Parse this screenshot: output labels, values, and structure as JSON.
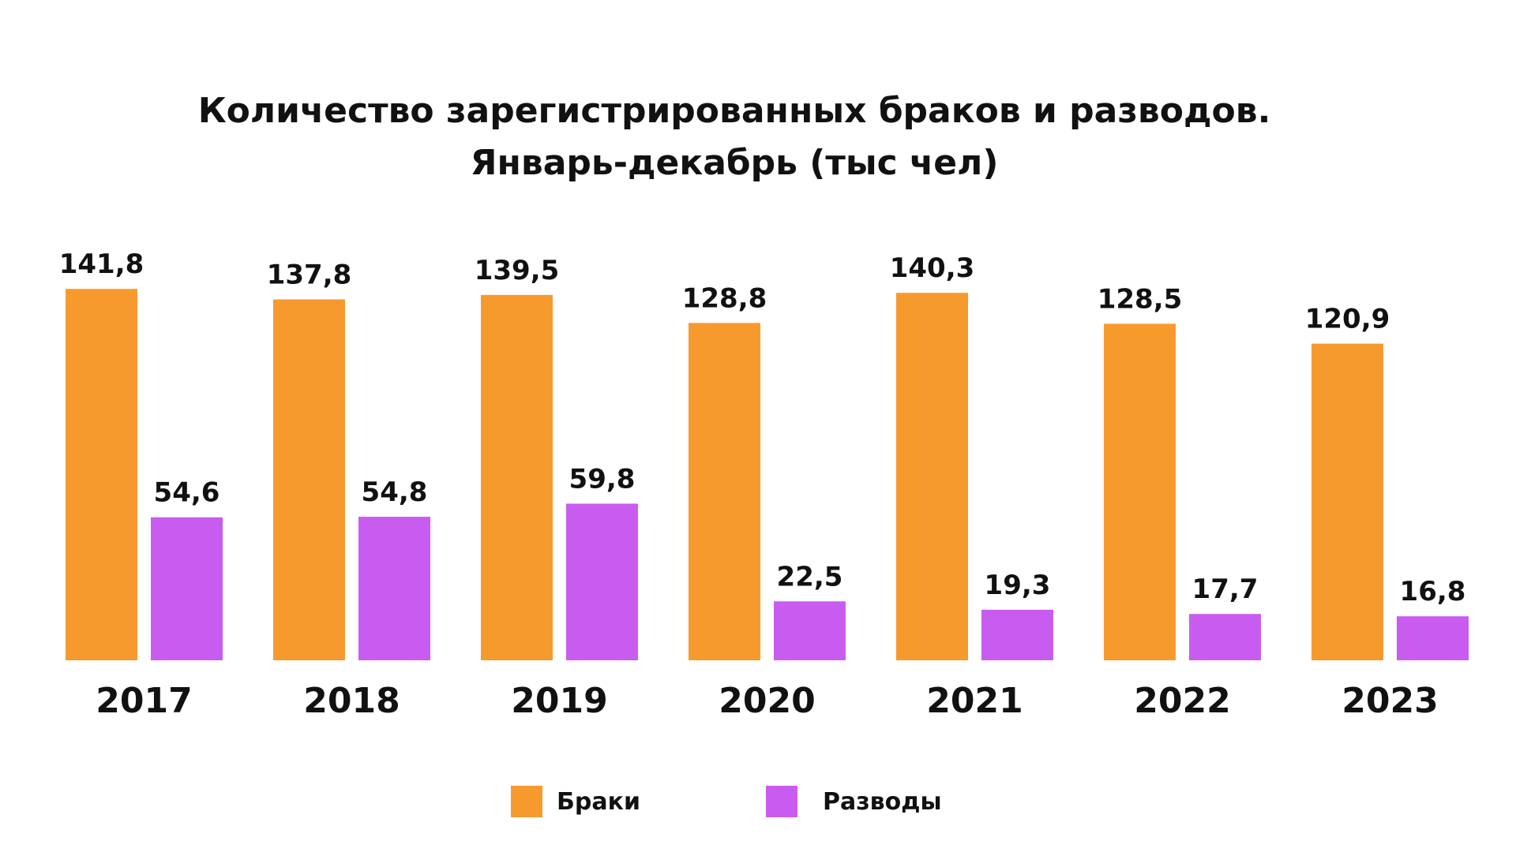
{
  "chart_data": {
    "type": "bar",
    "title": "Количество зарегистрированных браков и разводов.",
    "subtitle": "Январь-декабрь (тыс чел)",
    "categories": [
      "2017",
      "2018",
      "2019",
      "2020",
      "2021",
      "2022",
      "2023"
    ],
    "series": [
      {
        "name": "Браки",
        "color": "#F79A2E",
        "values": [
          141.8,
          137.8,
          139.5,
          128.8,
          140.3,
          128.5,
          120.9
        ],
        "labels": [
          "141,8",
          "137,8",
          "139,5",
          "128,8",
          "140,3",
          "128,5",
          "120,9"
        ]
      },
      {
        "name": "Разводы",
        "color": "#C95CF0",
        "values": [
          54.6,
          54.8,
          59.8,
          22.5,
          19.3,
          17.7,
          16.8
        ],
        "labels": [
          "54,6",
          "54,8",
          "59,8",
          "22,5",
          "19,3",
          "17,7",
          "16,8"
        ]
      }
    ],
    "legend_position": "bottom-center",
    "grid": false
  }
}
